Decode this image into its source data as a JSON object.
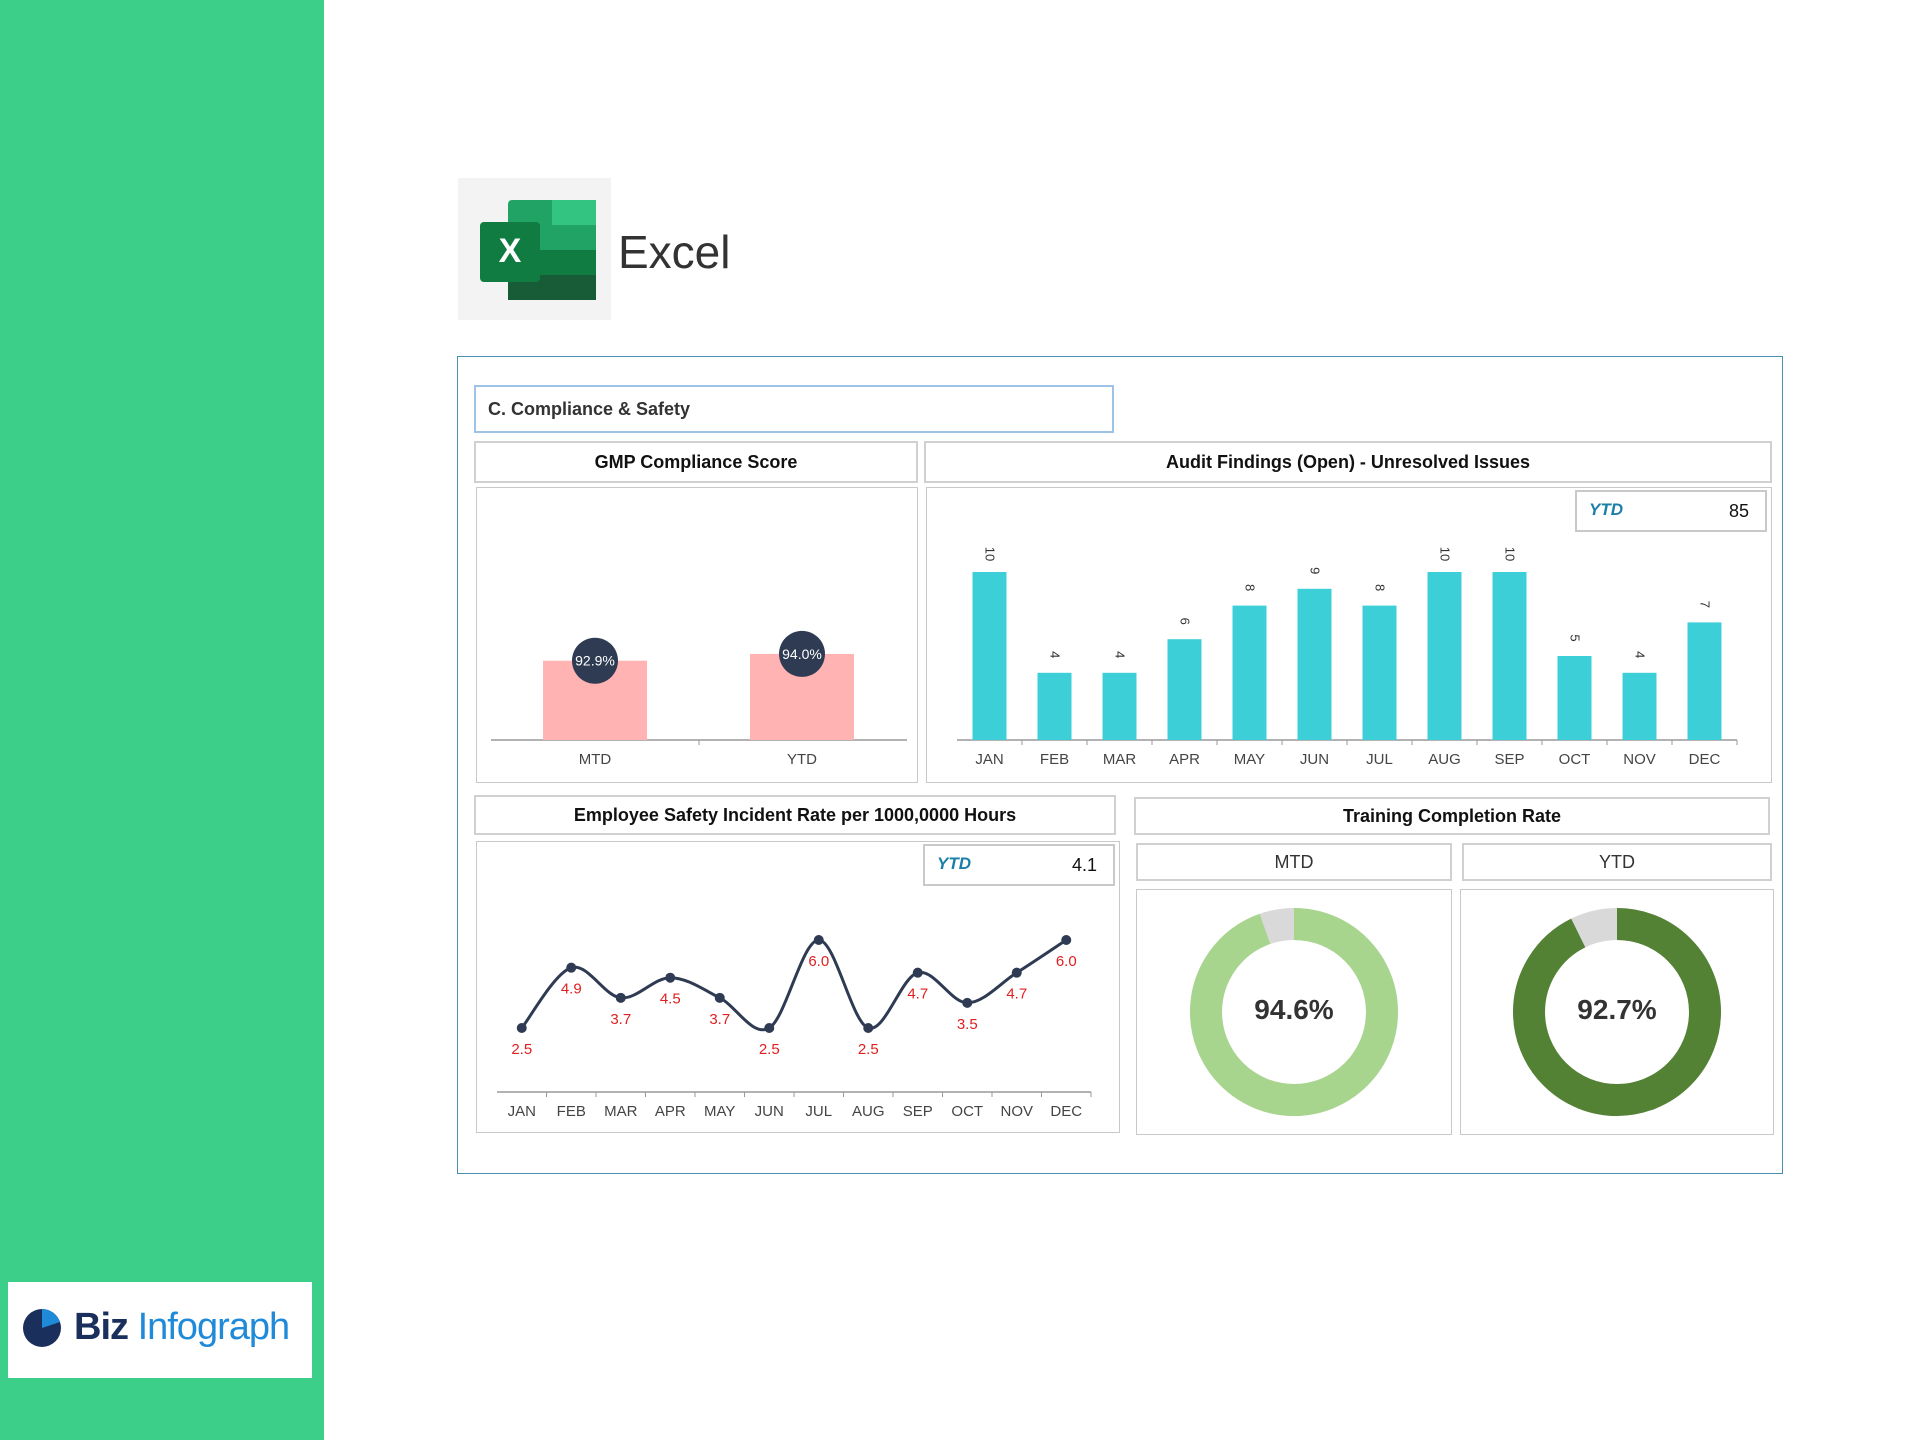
{
  "app": {
    "name": "Excel",
    "brand": {
      "part1": "Biz",
      "part2": "Infograph"
    }
  },
  "dashboard": {
    "section_title": "C. Compliance & Safety",
    "gmp": {
      "title": "GMP Compliance Score"
    },
    "audit": {
      "title": "Audit Findings (Open) - Unresolved Issues",
      "ytd_label": "YTD",
      "ytd_value": "85"
    },
    "safety": {
      "title": "Employee Safety Incident Rate per 1000,0000 Hours",
      "ytd_label": "YTD",
      "ytd_value": "4.1"
    },
    "training": {
      "title": "Training Completion Rate",
      "mtd_label": "MTD",
      "ytd_label": "YTD"
    }
  },
  "colors": {
    "sidebar": "#3ccf8a",
    "gmp_bar": "#ffb3b3",
    "badge": "#2e3b52",
    "audit_bar": "#3ccfd8",
    "line": "#2e3b52",
    "line_label": "#e02020",
    "donut_mtd": "#a8d58e",
    "donut_ytd": "#548235",
    "donut_rest": "#d9d9d9"
  },
  "chart_data": [
    {
      "type": "bar",
      "title": "GMP Compliance Score",
      "categories": [
        "MTD",
        "YTD"
      ],
      "values": [
        92.9,
        94.0
      ],
      "data_labels": [
        "92.9%",
        "94.0%"
      ],
      "ylim": [
        80,
        100
      ]
    },
    {
      "type": "bar",
      "title": "Audit Findings (Open) - Unresolved Issues",
      "categories": [
        "JAN",
        "FEB",
        "MAR",
        "APR",
        "MAY",
        "JUN",
        "JUL",
        "AUG",
        "SEP",
        "OCT",
        "NOV",
        "DEC"
      ],
      "values": [
        10,
        4,
        4,
        6,
        8,
        9,
        8,
        10,
        10,
        5,
        4,
        7
      ],
      "ylim": [
        0,
        10
      ]
    },
    {
      "type": "line",
      "title": "Employee Safety Incident Rate per 1000,0000 Hours",
      "categories": [
        "JAN",
        "FEB",
        "MAR",
        "APR",
        "MAY",
        "JUN",
        "JUL",
        "AUG",
        "SEP",
        "OCT",
        "NOV",
        "DEC"
      ],
      "values": [
        2.5,
        4.9,
        3.7,
        4.5,
        3.7,
        2.5,
        6.0,
        2.5,
        4.7,
        3.5,
        4.7,
        6.0
      ],
      "ylim": [
        0,
        7
      ]
    },
    {
      "type": "pie",
      "title": "MTD",
      "values": [
        94.6,
        5.4
      ],
      "center_label": "94.6%"
    },
    {
      "type": "pie",
      "title": "YTD",
      "values": [
        92.7,
        7.3
      ],
      "center_label": "92.7%"
    }
  ]
}
